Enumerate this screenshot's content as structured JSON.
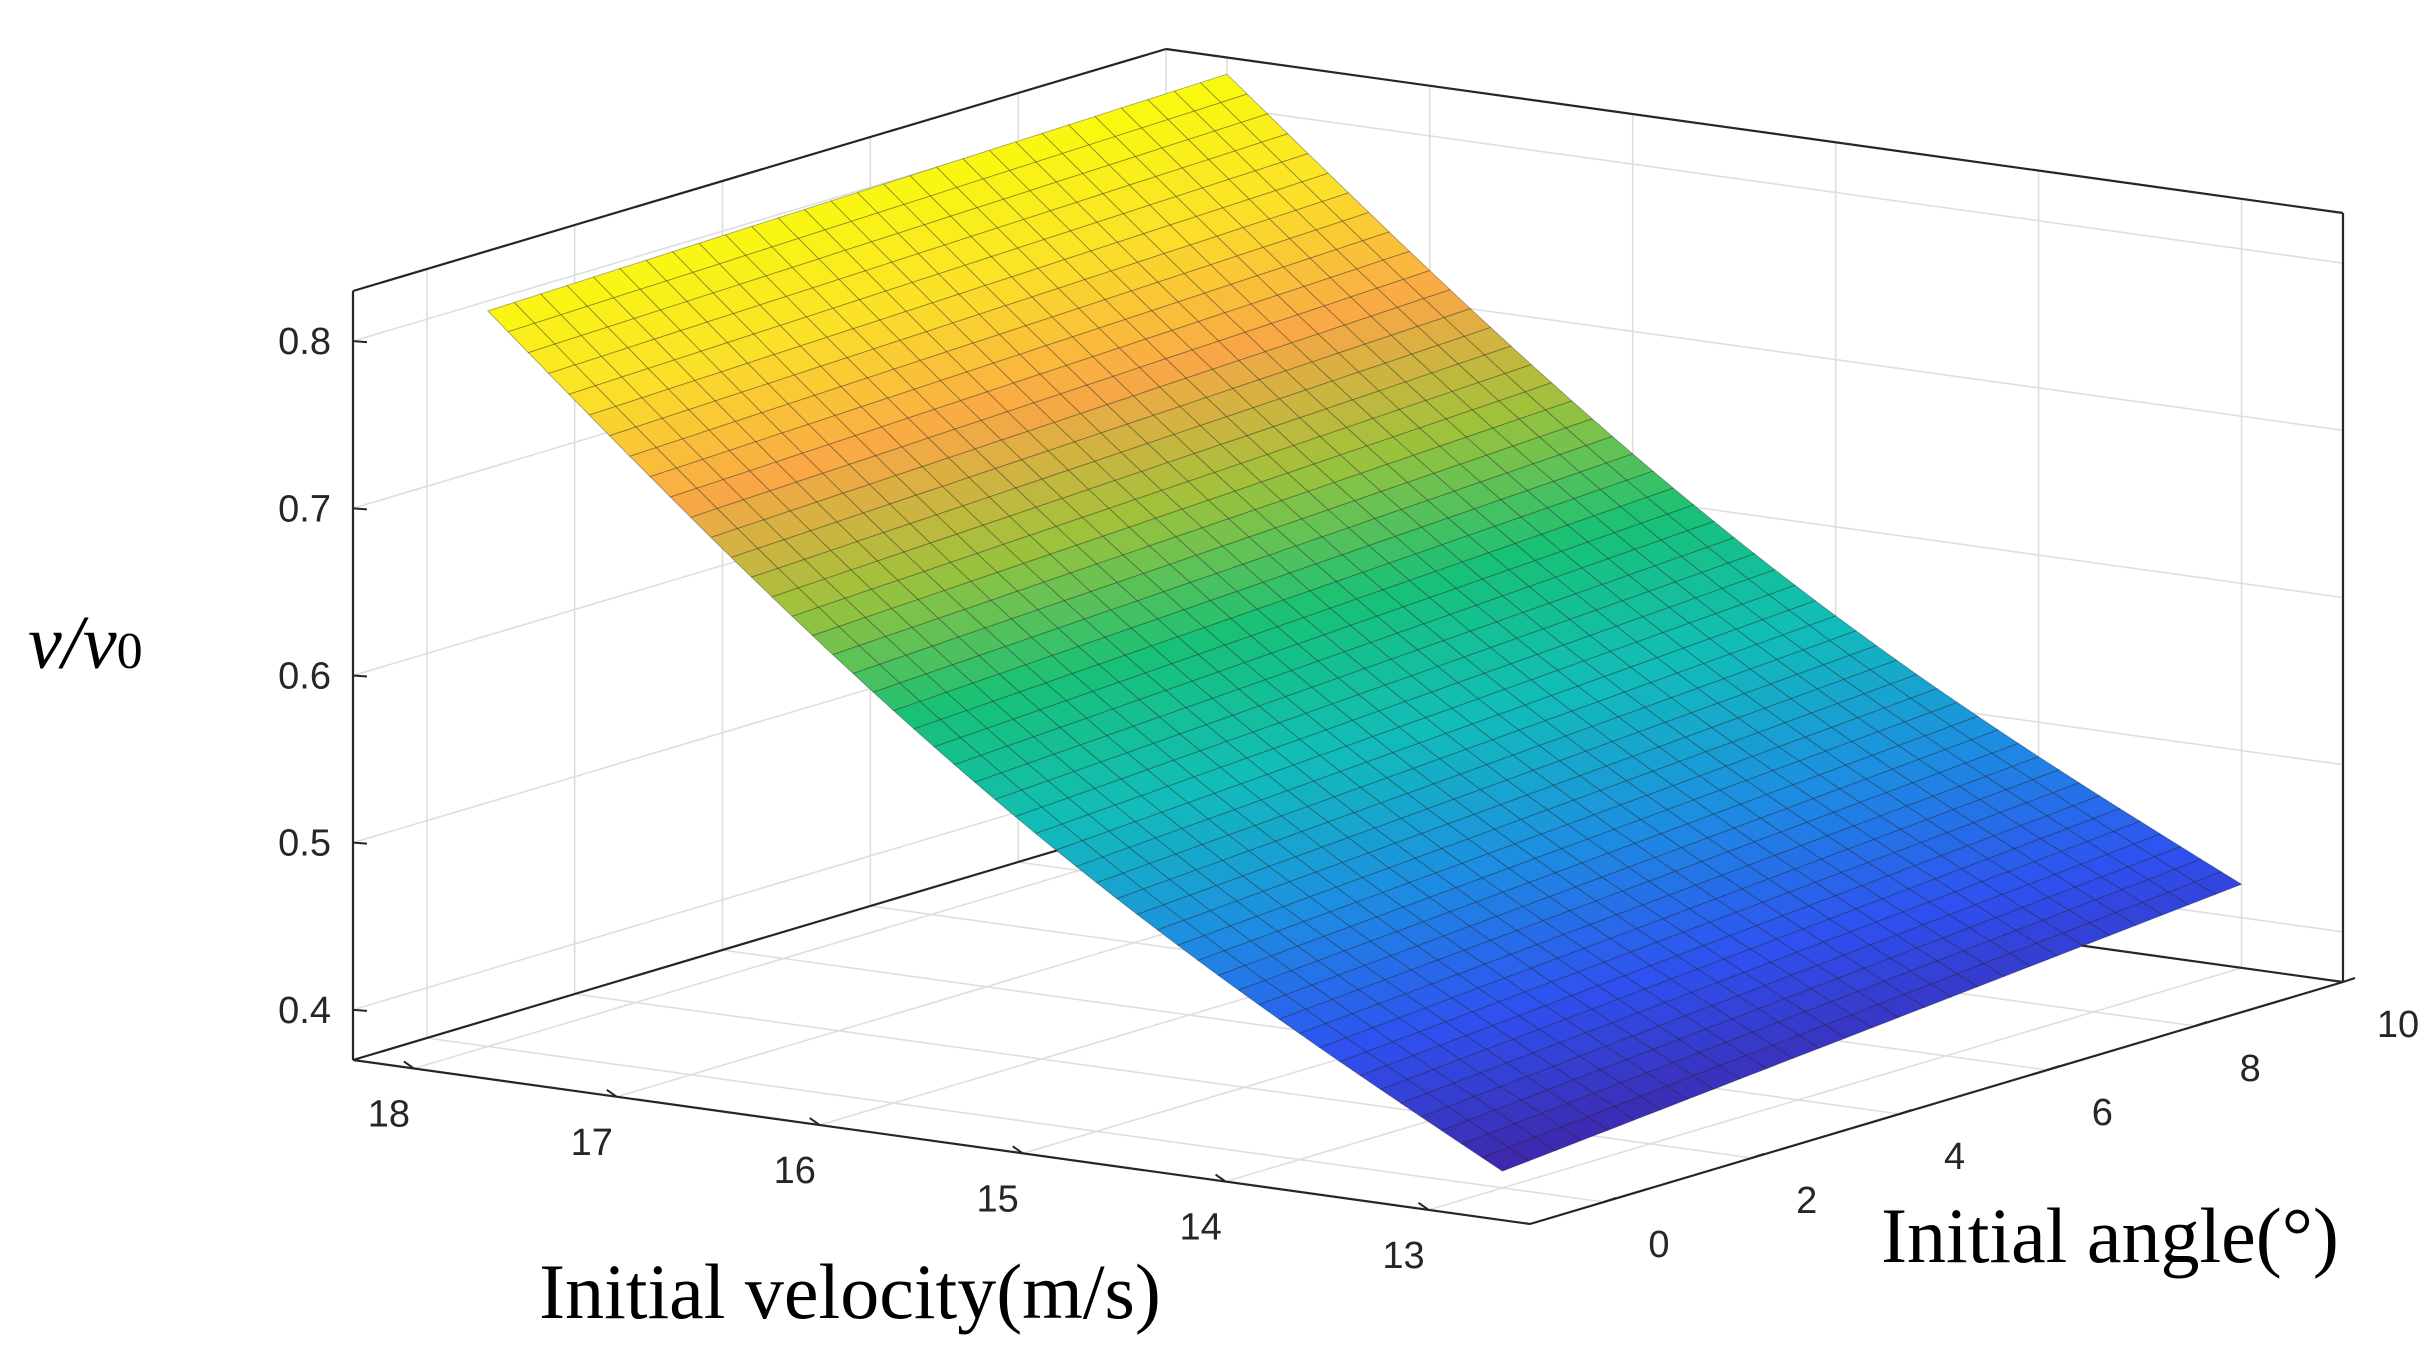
{
  "chart_data": {
    "type": "surface",
    "title": "",
    "x_axis": {
      "label": "Initial velocity(m/s)",
      "ticks": [
        18,
        17,
        16,
        15,
        14,
        13
      ],
      "range": [
        12.5,
        18.3
      ]
    },
    "y_axis": {
      "label": "Initial angle(°)",
      "ticks": [
        0,
        2,
        4,
        6,
        8,
        10
      ],
      "range": [
        -1,
        10
      ]
    },
    "z_axis": {
      "label_main": "v/v",
      "label_sub": "0",
      "ticks": [
        0.4,
        0.5,
        0.6,
        0.7,
        0.8
      ],
      "range": [
        0.37,
        0.83
      ]
    },
    "grid": true,
    "colormap": "parula",
    "colormap_colors": [
      "#3e26a8",
      "#2f50f0",
      "#1d8fe1",
      "#12bdb9",
      "#18c176",
      "#9fc23b",
      "#f9a746",
      "#fbe128",
      "#f9fb0e"
    ],
    "surface_samples": [
      {
        "velocity": 18,
        "angle": 0,
        "ratio": 0.81
      },
      {
        "velocity": 18,
        "angle": 10,
        "ratio": 0.82
      },
      {
        "velocity": 13,
        "angle": 0,
        "ratio": 0.38
      },
      {
        "velocity": 13,
        "angle": 10,
        "ratio": 0.42
      }
    ]
  }
}
